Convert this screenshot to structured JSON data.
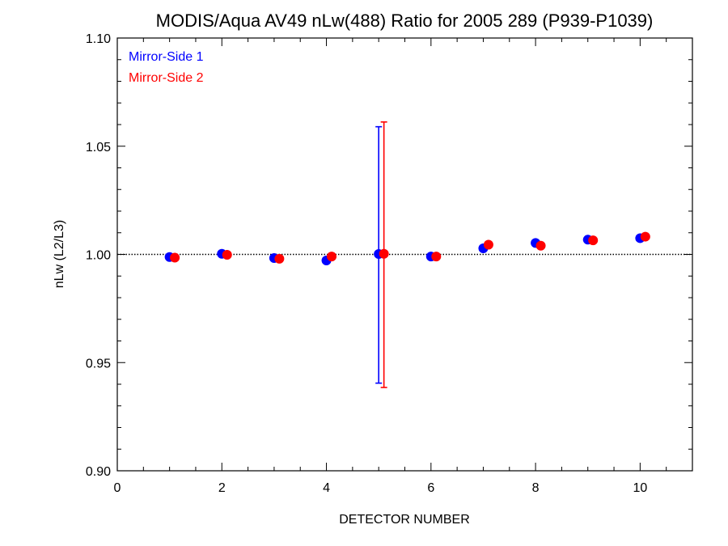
{
  "chart_data": {
    "type": "scatter",
    "title": "MODIS/Aqua AV49 nLw(488) Ratio for 2005 289 (P939-P1039)",
    "xlabel": "DETECTOR NUMBER",
    "ylabel": "nLw (L2/L3)",
    "xlim": [
      0,
      11
    ],
    "ylim": [
      0.9,
      1.1
    ],
    "x_ticks": [
      0,
      2,
      4,
      6,
      8,
      10
    ],
    "x_tick_labels": [
      "0",
      "2",
      "4",
      "6",
      "8",
      "10"
    ],
    "y_ticks": [
      0.9,
      0.95,
      1.0,
      1.05,
      1.1
    ],
    "y_tick_labels": [
      "0.90",
      "0.95",
      "1.00",
      "1.05",
      "1.10"
    ],
    "reference_line": {
      "y": 1.0,
      "style": "dotted"
    },
    "legend_position": "top-left",
    "series": [
      {
        "name": "Mirror-Side 1",
        "color": "#0000ff",
        "x": [
          1,
          2,
          3,
          4,
          5,
          6,
          7,
          8,
          9,
          10
        ],
        "y": [
          0.9988,
          1.0003,
          0.9983,
          0.9972,
          1.0002,
          0.999,
          1.0028,
          1.0053,
          1.0068,
          1.0075
        ],
        "error_bars": [
          {
            "x": 5,
            "low": 0.9405,
            "high": 1.059
          }
        ]
      },
      {
        "name": "Mirror-Side 2",
        "color": "#ff0000",
        "x": [
          1.1,
          2.1,
          3.1,
          4.1,
          5.1,
          6.1,
          7.1,
          8.1,
          9.1,
          10.1
        ],
        "y": [
          0.9985,
          0.9998,
          0.998,
          0.999,
          1.0003,
          0.999,
          1.0045,
          1.004,
          1.0065,
          1.0082
        ],
        "error_bars": [
          {
            "x": 5.1,
            "low": 0.9385,
            "high": 1.0612
          }
        ]
      }
    ]
  }
}
